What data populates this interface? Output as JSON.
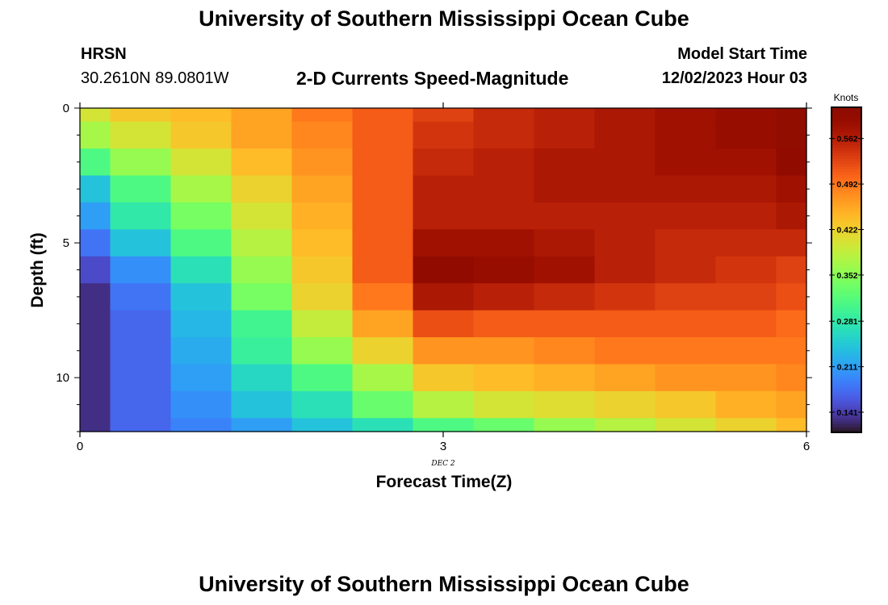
{
  "header": {
    "title": "University of Southern Mississippi Ocean Cube",
    "station": "HRSN",
    "coordinates": "30.2610N  89.0801W",
    "subtitle": "2-D Currents Speed-Magnitude",
    "model_start_label": "Model Start Time",
    "model_start_value": "12/02/2023 Hour 03"
  },
  "footer": {
    "title": "University of Southern Mississippi Ocean Cube"
  },
  "chart_data": {
    "type": "heatmap",
    "title": "2-D Currents Speed-Magnitude",
    "xlabel": "Forecast Time(Z)",
    "ylabel": "Depth (ft)",
    "x_ticks": [
      0,
      3,
      6
    ],
    "x_sublabel": "DEC 2",
    "y_ticks": [
      0,
      5,
      10
    ],
    "xlim": [
      0,
      6
    ],
    "ylim": [
      0,
      12
    ],
    "y_inverted": true,
    "x_cell_edges": [
      0,
      0.25,
      0.75,
      1.25,
      1.75,
      2.25,
      2.75,
      3.25,
      3.75,
      4.25,
      4.75,
      5.25,
      5.75,
      6
    ],
    "y_cell_edges": [
      0,
      0.5,
      1.5,
      2.5,
      3.5,
      4.5,
      5.5,
      6.5,
      7.5,
      8.5,
      9.5,
      10.5,
      11.5,
      12
    ],
    "values": [
      [
        0.4,
        0.43,
        0.44,
        0.46,
        0.49,
        0.51,
        0.53,
        0.55,
        0.56,
        0.57,
        0.58,
        0.59,
        0.65
      ],
      [
        0.37,
        0.4,
        0.43,
        0.46,
        0.48,
        0.51,
        0.54,
        0.55,
        0.56,
        0.57,
        0.58,
        0.59,
        0.61
      ],
      [
        0.31,
        0.36,
        0.4,
        0.44,
        0.47,
        0.51,
        0.55,
        0.56,
        0.57,
        0.57,
        0.58,
        0.58,
        0.6
      ],
      [
        0.24,
        0.31,
        0.37,
        0.42,
        0.46,
        0.51,
        0.56,
        0.56,
        0.57,
        0.57,
        0.57,
        0.57,
        0.58
      ],
      [
        0.21,
        0.28,
        0.34,
        0.4,
        0.45,
        0.51,
        0.56,
        0.56,
        0.56,
        0.56,
        0.56,
        0.56,
        0.57
      ],
      [
        0.18,
        0.24,
        0.31,
        0.38,
        0.44,
        0.51,
        0.58,
        0.58,
        0.57,
        0.56,
        0.55,
        0.55,
        0.55
      ],
      [
        0.15,
        0.2,
        0.27,
        0.36,
        0.43,
        0.51,
        0.6,
        0.59,
        0.58,
        0.56,
        0.55,
        0.54,
        0.53
      ],
      [
        0.13,
        0.18,
        0.24,
        0.34,
        0.42,
        0.49,
        0.57,
        0.56,
        0.55,
        0.54,
        0.53,
        0.53,
        0.52
      ],
      [
        0.13,
        0.17,
        0.23,
        0.3,
        0.39,
        0.46,
        0.52,
        0.51,
        0.51,
        0.51,
        0.51,
        0.51,
        0.5
      ],
      [
        0.13,
        0.17,
        0.22,
        0.29,
        0.36,
        0.42,
        0.47,
        0.47,
        0.48,
        0.49,
        0.49,
        0.49,
        0.49
      ],
      [
        0.13,
        0.17,
        0.21,
        0.26,
        0.31,
        0.37,
        0.43,
        0.44,
        0.45,
        0.46,
        0.47,
        0.47,
        0.48
      ],
      [
        0.13,
        0.17,
        0.2,
        0.24,
        0.27,
        0.33,
        0.38,
        0.4,
        0.41,
        0.42,
        0.43,
        0.45,
        0.46
      ],
      [
        0.13,
        0.17,
        0.19,
        0.21,
        0.24,
        0.27,
        0.31,
        0.33,
        0.36,
        0.38,
        0.4,
        0.42,
        0.44
      ]
    ],
    "colorbar": {
      "label": "Knots",
      "range": [
        0.11,
        0.61
      ],
      "ticks": [
        0.141,
        0.211,
        0.281,
        0.352,
        0.422,
        0.492,
        0.562
      ],
      "tick_labels": [
        "0.141",
        "0.211",
        "0.281",
        "0.352",
        "0.422",
        "0.492",
        "0.562"
      ],
      "colormap": "turbo",
      "placement": "right"
    }
  }
}
